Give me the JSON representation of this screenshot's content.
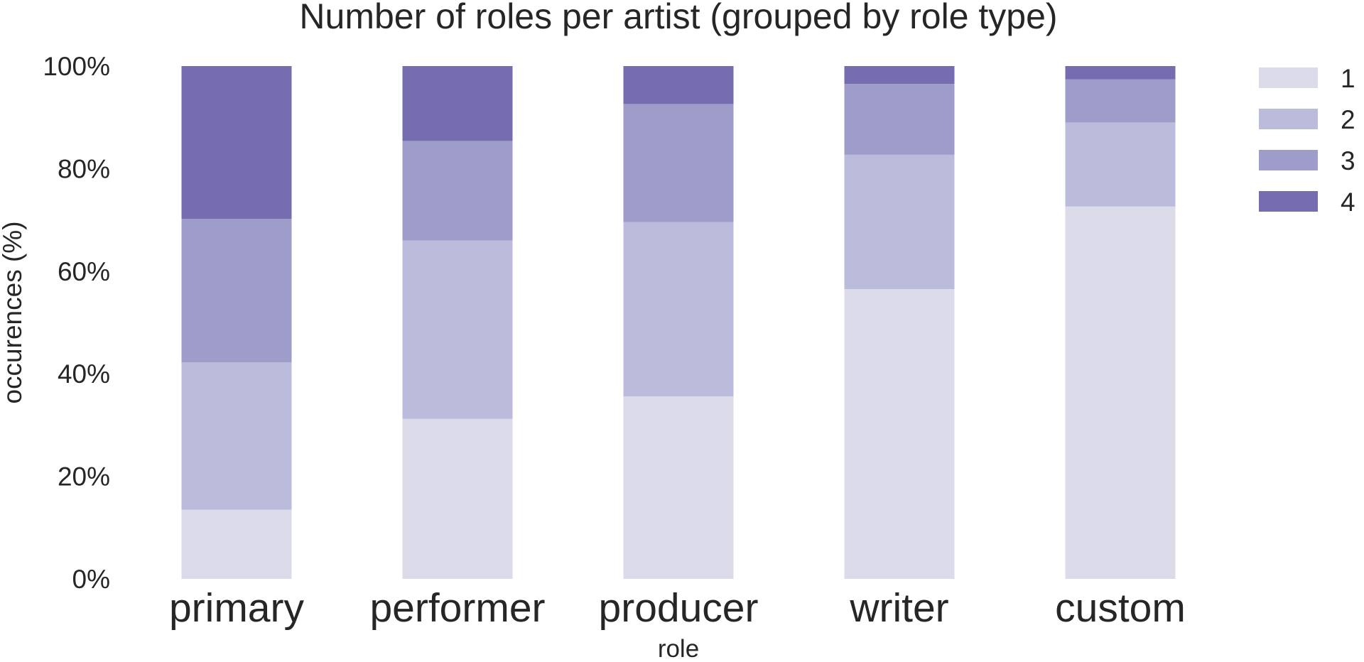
{
  "chart_data": {
    "type": "bar",
    "stacked": true,
    "title": "Number of roles per artist (grouped by role type)",
    "xlabel": "role",
    "ylabel": "occurences (%)",
    "ylim": [
      0,
      100
    ],
    "yticks": [
      0,
      20,
      40,
      60,
      80,
      100
    ],
    "ytick_suffix": "%",
    "grid": false,
    "legend_position": "top-right",
    "categories": [
      "primary",
      "performer",
      "producer",
      "writer",
      "custom"
    ],
    "series": [
      {
        "name": "1",
        "color": "#dcdbea",
        "values": [
          13.5,
          31.2,
          35.6,
          56.5,
          72.6
        ]
      },
      {
        "name": "2",
        "color": "#bbbcdc",
        "values": [
          28.7,
          34.8,
          34.0,
          26.2,
          16.4
        ]
      },
      {
        "name": "3",
        "color": "#9e9dc9",
        "values": [
          28.0,
          19.4,
          23.0,
          13.8,
          8.4
        ]
      },
      {
        "name": "4",
        "color": "#756daf",
        "values": [
          29.8,
          14.6,
          7.4,
          3.5,
          2.6
        ]
      }
    ]
  }
}
